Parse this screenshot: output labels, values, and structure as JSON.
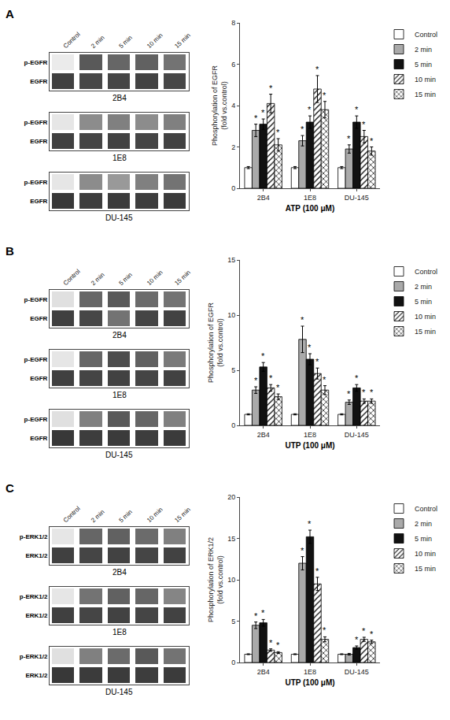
{
  "chart_data": [
    {
      "type": "heatmap",
      "title": "A",
      "x": [
        "Control",
        "2 min",
        "5 min",
        "10 min",
        "15 min"
      ],
      "zlim": [
        0,
        1
      ],
      "groups": [
        {
          "label": "2B4",
          "y": [
            "p-EGFR",
            "EGFR"
          ],
          "cells": [
            [
              0.92,
              0.35,
              0.4,
              0.38,
              0.45
            ],
            [
              0.25,
              0.28,
              0.27,
              0.26,
              0.28
            ]
          ]
        },
        {
          "label": "1E8",
          "y": [
            "p-EGFR",
            "EGFR"
          ],
          "cells": [
            [
              0.9,
              0.55,
              0.5,
              0.55,
              0.5
            ],
            [
              0.25,
              0.27,
              0.26,
              0.27,
              0.26
            ]
          ]
        },
        {
          "label": "DU-145",
          "y": [
            "p-EGFR",
            "EGFR"
          ],
          "cells": [
            [
              0.9,
              0.55,
              0.6,
              0.5,
              0.45
            ],
            [
              0.22,
              0.24,
              0.23,
              0.24,
              0.23
            ]
          ]
        }
      ]
    },
    {
      "type": "bar",
      "categories": [
        "2B4",
        "1E8",
        "DU-145"
      ],
      "xlabel": "ATP (100 μM)",
      "ylabel": "Phosphorylation of EGFR\n(fold vs.control)",
      "ylim": [
        0,
        8
      ],
      "yticks": [
        0,
        2,
        4,
        6,
        8
      ],
      "grid": false,
      "legend": "upper right",
      "edge_color": "#000000",
      "series": [
        {
          "name": "Control",
          "color": "#ffffff",
          "values": [
            1.0,
            1.0,
            1.0
          ],
          "errors": [
            0.05,
            0.05,
            0.05
          ],
          "stars": [
            null,
            null,
            null
          ]
        },
        {
          "name": "2 min",
          "color": "#aaaaaa",
          "values": [
            2.8,
            2.3,
            1.9
          ],
          "errors": [
            0.3,
            0.25,
            0.2
          ],
          "stars": [
            "*",
            "*",
            "*"
          ]
        },
        {
          "name": "5 min",
          "color": "#111111",
          "values": [
            3.1,
            3.2,
            3.2
          ],
          "errors": [
            0.25,
            0.3,
            0.3
          ],
          "stars": [
            "*",
            "*",
            "*"
          ]
        },
        {
          "name": "10 min",
          "color": "#ffffff",
          "marker": "/",
          "values": [
            4.1,
            4.8,
            2.5
          ],
          "errors": [
            0.45,
            0.65,
            0.3
          ],
          "stars": [
            "*",
            "*",
            "*"
          ]
        },
        {
          "name": "15 min",
          "color": "#ffffff",
          "marker": "x",
          "values": [
            2.1,
            3.8,
            1.8
          ],
          "errors": [
            0.3,
            0.4,
            0.2
          ],
          "stars": [
            "*",
            "*",
            "*"
          ]
        }
      ]
    },
    {
      "type": "heatmap",
      "title": "B",
      "x": [
        "Control",
        "2 min",
        "5 min",
        "10 min",
        "15 min"
      ],
      "zlim": [
        0,
        1
      ],
      "groups": [
        {
          "label": "2B4",
          "y": [
            "p-EGFR",
            "EGFR"
          ],
          "cells": [
            [
              0.88,
              0.4,
              0.35,
              0.42,
              0.45
            ],
            [
              0.25,
              0.28,
              0.45,
              0.27,
              0.26
            ]
          ]
        },
        {
          "label": "1E8",
          "y": [
            "p-EGFR",
            "EGFR"
          ],
          "cells": [
            [
              0.9,
              0.4,
              0.3,
              0.38,
              0.48
            ],
            [
              0.25,
              0.27,
              0.26,
              0.27,
              0.26
            ]
          ]
        },
        {
          "label": "DU-145",
          "y": [
            "p-EGFR",
            "EGFR"
          ],
          "cells": [
            [
              0.88,
              0.5,
              0.35,
              0.4,
              0.5
            ],
            [
              0.22,
              0.24,
              0.23,
              0.24,
              0.23
            ]
          ]
        }
      ]
    },
    {
      "type": "bar",
      "categories": [
        "2B4",
        "1E8",
        "DU-145"
      ],
      "xlabel": "UTP (100 μM)",
      "ylabel": "Phosphorylation of EGFR\n(fold vs.control)",
      "ylim": [
        0,
        15
      ],
      "yticks": [
        0,
        5,
        10,
        15
      ],
      "grid": false,
      "legend": "upper right",
      "edge_color": "#000000",
      "series": [
        {
          "name": "Control",
          "color": "#ffffff",
          "values": [
            1.0,
            1.0,
            1.0
          ],
          "errors": [
            0.05,
            0.05,
            0.05
          ],
          "stars": [
            null,
            null,
            null
          ]
        },
        {
          "name": "2 min",
          "color": "#aaaaaa",
          "values": [
            3.2,
            7.8,
            2.1
          ],
          "errors": [
            0.3,
            1.2,
            0.2
          ],
          "stars": [
            "*",
            "*",
            "*"
          ]
        },
        {
          "name": "5 min",
          "color": "#111111",
          "values": [
            5.3,
            6.0,
            3.4
          ],
          "errors": [
            0.4,
            0.5,
            0.3
          ],
          "stars": [
            "*",
            "*",
            "*"
          ]
        },
        {
          "name": "10 min",
          "color": "#ffffff",
          "marker": "/",
          "values": [
            3.4,
            4.7,
            2.2
          ],
          "errors": [
            0.3,
            0.5,
            0.2
          ],
          "stars": [
            "*",
            "*",
            "*"
          ]
        },
        {
          "name": "15 min",
          "color": "#ffffff",
          "marker": "x",
          "values": [
            2.6,
            3.2,
            2.2
          ],
          "errors": [
            0.25,
            0.4,
            0.2
          ],
          "stars": [
            "*",
            "*",
            "*"
          ]
        }
      ]
    },
    {
      "type": "heatmap",
      "title": "C",
      "x": [
        "Control",
        "2 min",
        "5 min",
        "10 min",
        "15 min"
      ],
      "zlim": [
        0,
        1
      ],
      "groups": [
        {
          "label": "2B4",
          "y": [
            "p-ERK1/2",
            "ERK1/2"
          ],
          "cells": [
            [
              0.9,
              0.4,
              0.38,
              0.42,
              0.5
            ],
            [
              0.25,
              0.27,
              0.26,
              0.27,
              0.26
            ]
          ]
        },
        {
          "label": "1E8",
          "y": [
            "p-ERK1/2",
            "ERK1/2"
          ],
          "cells": [
            [
              0.9,
              0.45,
              0.38,
              0.4,
              0.52
            ],
            [
              0.25,
              0.27,
              0.26,
              0.27,
              0.26
            ]
          ]
        },
        {
          "label": "DU-145",
          "y": [
            "p-ERK1/2",
            "ERK1/2"
          ],
          "cells": [
            [
              0.88,
              0.5,
              0.42,
              0.35,
              0.45
            ],
            [
              0.22,
              0.23,
              0.23,
              0.24,
              0.23
            ]
          ]
        }
      ]
    },
    {
      "type": "bar",
      "categories": [
        "2B4",
        "1E8",
        "DU-145"
      ],
      "xlabel": "UTP (100 μM)",
      "ylabel": "Phosphorylation of ERK1/2\n(fold vs.control)",
      "ylim": [
        0,
        20
      ],
      "yticks": [
        0,
        5,
        10,
        15,
        20
      ],
      "grid": false,
      "legend": "upper right",
      "edge_color": "#000000",
      "series": [
        {
          "name": "Control",
          "color": "#ffffff",
          "values": [
            1.0,
            1.0,
            1.0
          ],
          "errors": [
            0.05,
            0.05,
            0.05
          ],
          "stars": [
            null,
            null,
            null
          ]
        },
        {
          "name": "2 min",
          "color": "#aaaaaa",
          "values": [
            4.5,
            12.0,
            1.0
          ],
          "errors": [
            0.4,
            0.8,
            0.1
          ],
          "stars": [
            "*",
            "*",
            null
          ]
        },
        {
          "name": "5 min",
          "color": "#111111",
          "values": [
            4.8,
            15.2,
            1.8
          ],
          "errors": [
            0.4,
            0.8,
            0.2
          ],
          "stars": [
            "*",
            "*",
            "*"
          ]
        },
        {
          "name": "10 min",
          "color": "#ffffff",
          "marker": "/",
          "values": [
            1.5,
            9.5,
            2.8
          ],
          "errors": [
            0.15,
            0.8,
            0.25
          ],
          "stars": [
            "*",
            "*",
            "*"
          ]
        },
        {
          "name": "15 min",
          "color": "#ffffff",
          "marker": "x",
          "values": [
            1.2,
            2.8,
            2.5
          ],
          "errors": [
            0.1,
            0.3,
            0.2
          ],
          "stars": [
            "*",
            "*",
            "*"
          ]
        }
      ]
    }
  ]
}
